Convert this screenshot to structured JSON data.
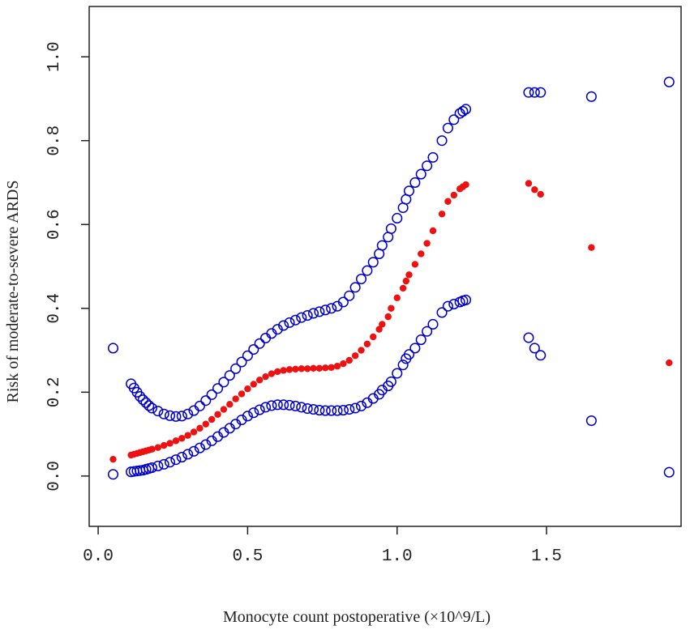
{
  "chart_data": {
    "type": "scatter",
    "xlabel": "Monocyte count postoperative (×10^9/L)",
    "ylabel": "Risk of moderate-to-severe ARDS",
    "xlim": [
      -0.03,
      1.95
    ],
    "ylim": [
      -0.12,
      1.12
    ],
    "x_ticks": [
      0.0,
      0.5,
      1.0,
      1.5
    ],
    "x_tick_labels": [
      "0.0",
      "0.5",
      "1.0",
      "1.5"
    ],
    "y_ticks": [
      0.0,
      0.2,
      0.4,
      0.6,
      0.8,
      1.0
    ],
    "y_tick_labels": [
      "0.0",
      "0.2",
      "0.4",
      "0.6",
      "0.8",
      "1.0"
    ],
    "series": [
      {
        "name": "Upper 95% CI",
        "style": "open-circle",
        "color": "#0000cc",
        "x": [
          0.05,
          0.11,
          0.12,
          0.13,
          0.14,
          0.15,
          0.16,
          0.17,
          0.18,
          0.2,
          0.22,
          0.24,
          0.26,
          0.28,
          0.3,
          0.32,
          0.34,
          0.36,
          0.38,
          0.4,
          0.42,
          0.44,
          0.46,
          0.48,
          0.5,
          0.52,
          0.54,
          0.56,
          0.58,
          0.6,
          0.62,
          0.64,
          0.66,
          0.68,
          0.7,
          0.72,
          0.74,
          0.76,
          0.78,
          0.8,
          0.82,
          0.84,
          0.86,
          0.88,
          0.9,
          0.92,
          0.94,
          0.95,
          0.97,
          0.98,
          1.0,
          1.02,
          1.03,
          1.04,
          1.06,
          1.08,
          1.1,
          1.12,
          1.15,
          1.17,
          1.19,
          1.21,
          1.22,
          1.23,
          1.44,
          1.46,
          1.48,
          1.65,
          1.91
        ],
        "y": [
          0.305,
          0.22,
          0.21,
          0.2,
          0.19,
          0.182,
          0.175,
          0.168,
          0.162,
          0.155,
          0.148,
          0.144,
          0.142,
          0.143,
          0.148,
          0.156,
          0.167,
          0.18,
          0.194,
          0.209,
          0.224,
          0.24,
          0.256,
          0.272,
          0.287,
          0.302,
          0.316,
          0.329,
          0.34,
          0.35,
          0.359,
          0.366,
          0.372,
          0.378,
          0.383,
          0.388,
          0.392,
          0.396,
          0.4,
          0.405,
          0.415,
          0.43,
          0.45,
          0.47,
          0.49,
          0.51,
          0.53,
          0.55,
          0.57,
          0.59,
          0.615,
          0.64,
          0.66,
          0.68,
          0.7,
          0.72,
          0.74,
          0.76,
          0.8,
          0.83,
          0.85,
          0.865,
          0.87,
          0.875,
          0.915,
          0.915,
          0.915,
          0.905,
          0.94
        ]
      },
      {
        "name": "Estimate",
        "style": "filled-dot",
        "color": "#ee1111",
        "x": [
          0.05,
          0.11,
          0.12,
          0.13,
          0.14,
          0.15,
          0.16,
          0.17,
          0.18,
          0.2,
          0.22,
          0.24,
          0.26,
          0.28,
          0.3,
          0.32,
          0.34,
          0.36,
          0.38,
          0.4,
          0.42,
          0.44,
          0.46,
          0.48,
          0.5,
          0.52,
          0.54,
          0.56,
          0.58,
          0.6,
          0.62,
          0.64,
          0.66,
          0.68,
          0.7,
          0.72,
          0.74,
          0.76,
          0.78,
          0.8,
          0.82,
          0.84,
          0.86,
          0.88,
          0.9,
          0.92,
          0.94,
          0.95,
          0.97,
          0.98,
          1.0,
          1.02,
          1.03,
          1.04,
          1.06,
          1.08,
          1.1,
          1.12,
          1.15,
          1.17,
          1.19,
          1.21,
          1.22,
          1.23,
          1.44,
          1.46,
          1.48,
          1.65,
          1.91
        ],
        "y": [
          0.04,
          0.05,
          0.052,
          0.054,
          0.056,
          0.058,
          0.06,
          0.062,
          0.064,
          0.068,
          0.073,
          0.078,
          0.084,
          0.09,
          0.097,
          0.105,
          0.114,
          0.124,
          0.135,
          0.147,
          0.159,
          0.171,
          0.184,
          0.196,
          0.208,
          0.219,
          0.229,
          0.237,
          0.244,
          0.249,
          0.252,
          0.254,
          0.255,
          0.256,
          0.256,
          0.257,
          0.257,
          0.258,
          0.259,
          0.262,
          0.268,
          0.276,
          0.287,
          0.3,
          0.315,
          0.332,
          0.35,
          0.362,
          0.38,
          0.4,
          0.425,
          0.448,
          0.465,
          0.48,
          0.505,
          0.53,
          0.555,
          0.585,
          0.625,
          0.655,
          0.67,
          0.685,
          0.69,
          0.695,
          0.698,
          0.683,
          0.672,
          0.545,
          0.27
        ]
      },
      {
        "name": "Lower 95% CI",
        "style": "open-circle",
        "color": "#0000cc",
        "x": [
          0.05,
          0.11,
          0.12,
          0.13,
          0.14,
          0.15,
          0.16,
          0.17,
          0.18,
          0.2,
          0.22,
          0.24,
          0.26,
          0.28,
          0.3,
          0.32,
          0.34,
          0.36,
          0.38,
          0.4,
          0.42,
          0.44,
          0.46,
          0.48,
          0.5,
          0.52,
          0.54,
          0.56,
          0.58,
          0.6,
          0.62,
          0.64,
          0.66,
          0.68,
          0.7,
          0.72,
          0.74,
          0.76,
          0.78,
          0.8,
          0.82,
          0.84,
          0.86,
          0.88,
          0.9,
          0.92,
          0.94,
          0.95,
          0.97,
          0.98,
          1.0,
          1.02,
          1.03,
          1.04,
          1.06,
          1.08,
          1.1,
          1.12,
          1.15,
          1.17,
          1.19,
          1.21,
          1.22,
          1.23,
          1.44,
          1.46,
          1.48,
          1.65,
          1.91
        ],
        "y": [
          0.004,
          0.01,
          0.011,
          0.012,
          0.013,
          0.014,
          0.016,
          0.018,
          0.02,
          0.024,
          0.028,
          0.033,
          0.039,
          0.045,
          0.052,
          0.059,
          0.067,
          0.075,
          0.084,
          0.094,
          0.104,
          0.114,
          0.124,
          0.134,
          0.143,
          0.151,
          0.158,
          0.164,
          0.168,
          0.17,
          0.17,
          0.169,
          0.167,
          0.164,
          0.161,
          0.159,
          0.157,
          0.156,
          0.156,
          0.156,
          0.157,
          0.159,
          0.162,
          0.167,
          0.175,
          0.185,
          0.195,
          0.205,
          0.215,
          0.225,
          0.245,
          0.265,
          0.28,
          0.29,
          0.305,
          0.325,
          0.345,
          0.362,
          0.39,
          0.405,
          0.41,
          0.415,
          0.418,
          0.42,
          0.33,
          0.305,
          0.288,
          0.132,
          0.009
        ]
      }
    ]
  }
}
